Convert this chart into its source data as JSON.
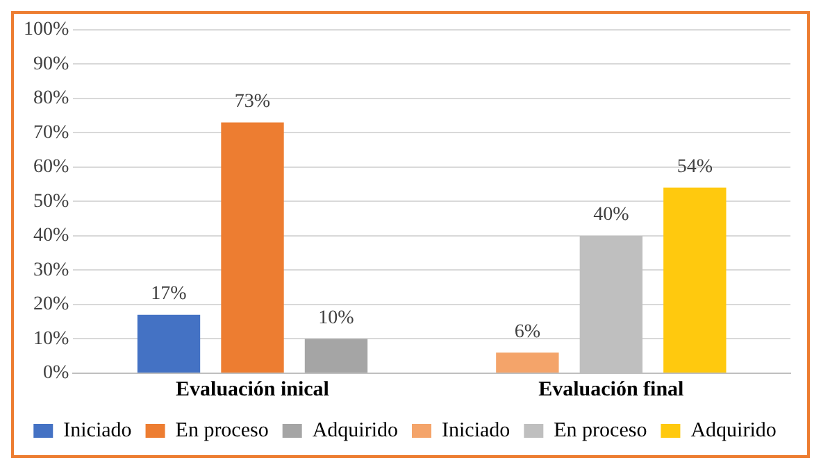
{
  "chart_data": {
    "type": "bar",
    "categories": [
      "Evaluación inical",
      "Evaluación final"
    ],
    "series": [
      {
        "name": "Iniciado",
        "color": "#4472c4",
        "values": [
          17,
          null
        ],
        "value_labels": [
          "17%",
          null
        ]
      },
      {
        "name": "En proceso",
        "color": "#ed7d31",
        "values": [
          73,
          null
        ],
        "value_labels": [
          "73%",
          null
        ]
      },
      {
        "name": "Adquirido",
        "color": "#a5a5a5",
        "values": [
          10,
          null
        ],
        "value_labels": [
          "10%",
          null
        ]
      },
      {
        "name": "Iniciado",
        "color": "#f4a46a",
        "values": [
          null,
          6
        ],
        "value_labels": [
          null,
          "6%"
        ]
      },
      {
        "name": "En proceso",
        "color": "#bfbfbf",
        "values": [
          null,
          40
        ],
        "value_labels": [
          null,
          "40%"
        ]
      },
      {
        "name": "Adquirido",
        "color": "#ffc90e",
        "values": [
          null,
          54
        ],
        "value_labels": [
          null,
          "54%"
        ]
      }
    ],
    "ylim": [
      0,
      100
    ],
    "yticks": [
      {
        "value": 0,
        "label": "0%"
      },
      {
        "value": 10,
        "label": "10%"
      },
      {
        "value": 20,
        "label": "20%"
      },
      {
        "value": 30,
        "label": "30%"
      },
      {
        "value": 40,
        "label": "40%"
      },
      {
        "value": 50,
        "label": "50%"
      },
      {
        "value": 60,
        "label": "60%"
      },
      {
        "value": 70,
        "label": "70%"
      },
      {
        "value": 80,
        "label": "80%"
      },
      {
        "value": 90,
        "label": "90%"
      },
      {
        "value": 100,
        "label": "100%"
      }
    ],
    "grid": "y",
    "legend": "bottom"
  }
}
